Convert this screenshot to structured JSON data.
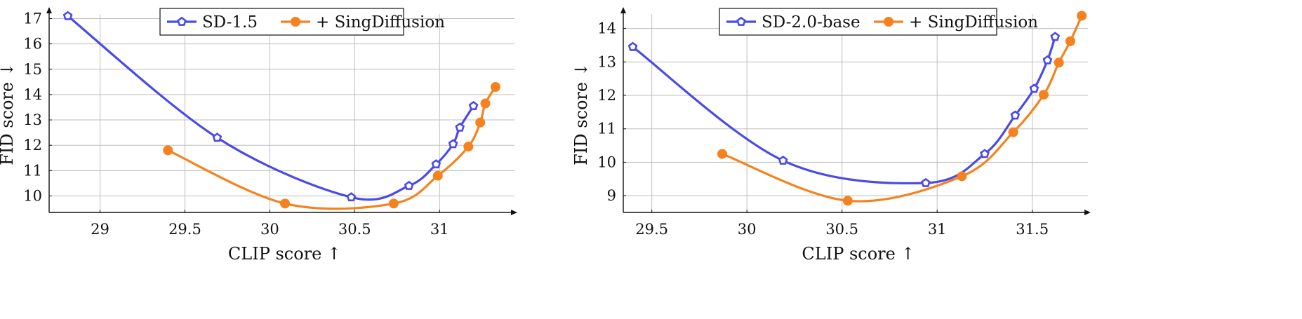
{
  "chart_data": [
    {
      "type": "line",
      "xlabel": "CLIP score ↑",
      "ylabel": "FID score ↓",
      "xlim": [
        28.7,
        31.45
      ],
      "ylim": [
        9.35,
        17.4
      ],
      "xticks": [
        29,
        29.5,
        30,
        30.5,
        31
      ],
      "yticks": [
        10,
        11,
        12,
        13,
        14,
        15,
        16,
        17
      ],
      "grid": true,
      "legend_position": "top-center",
      "series": [
        {
          "name": "SD-1.5",
          "color": "#4a4ae8",
          "marker": "pentagon",
          "x": [
            28.81,
            29.69,
            30.48,
            30.82,
            30.98,
            31.08,
            31.12,
            31.2
          ],
          "y": [
            17.1,
            12.3,
            9.95,
            10.4,
            11.25,
            12.05,
            12.7,
            13.55
          ]
        },
        {
          "name": "+ SingDiffusion",
          "color": "#f5821f",
          "marker": "circle",
          "x": [
            29.4,
            30.09,
            30.73,
            30.99,
            31.17,
            31.24,
            31.27,
            31.33
          ],
          "y": [
            11.8,
            9.7,
            9.7,
            10.8,
            11.95,
            12.9,
            13.65,
            14.3
          ]
        }
      ]
    },
    {
      "type": "line",
      "xlabel": "CLIP score ↑",
      "ylabel": "FID score ↓",
      "xlim": [
        29.35,
        31.8
      ],
      "ylim": [
        8.5,
        14.6
      ],
      "xticks": [
        29.5,
        30,
        30.5,
        31,
        31.5
      ],
      "yticks": [
        9,
        10,
        11,
        12,
        13,
        14
      ],
      "grid": true,
      "legend_position": "top-center",
      "series": [
        {
          "name": "SD-2.0-base",
          "color": "#4a4ae8",
          "marker": "pentagon",
          "x": [
            29.4,
            30.19,
            30.94,
            31.25,
            31.41,
            31.51,
            31.58,
            31.62
          ],
          "y": [
            13.45,
            10.05,
            9.38,
            10.25,
            11.4,
            12.2,
            13.05,
            13.75
          ]
        },
        {
          "name": "+ SingDiffusion",
          "color": "#f5821f",
          "marker": "circle",
          "x": [
            29.87,
            30.53,
            31.13,
            31.4,
            31.56,
            31.64,
            31.7,
            31.76
          ],
          "y": [
            10.25,
            8.85,
            9.58,
            10.9,
            12.02,
            12.98,
            13.62,
            14.38
          ]
        }
      ]
    }
  ]
}
